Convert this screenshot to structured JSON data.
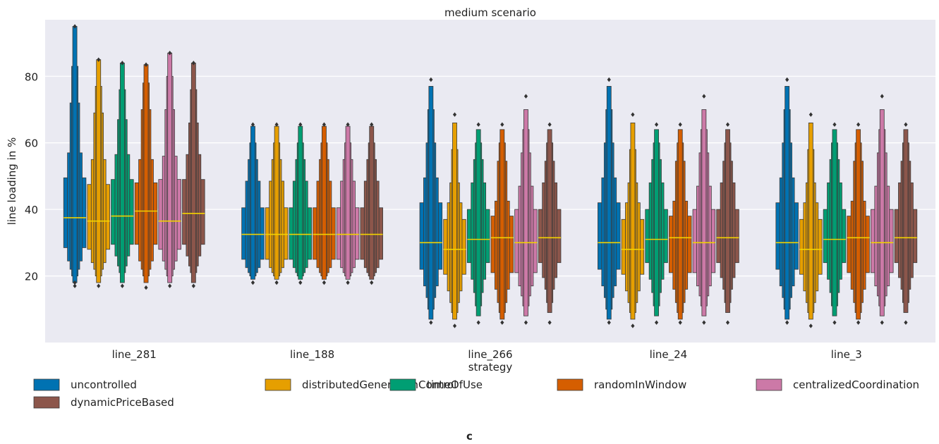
{
  "chart_data": {
    "type": "boxen",
    "title": "medium scenario",
    "xlabel": "strategy",
    "ylabel": "line loading in %",
    "ylim": [
      0,
      97
    ],
    "yticks": [
      20,
      40,
      60,
      80
    ],
    "grid": true,
    "legend_position": "bottom",
    "categories": [
      "line_281",
      "line_188",
      "line_266",
      "line_24",
      "line_3"
    ],
    "series": [
      {
        "name": "uncontrolled",
        "color": "#0072b2"
      },
      {
        "name": "distributedGenerationControl",
        "color": "#e69f00"
      },
      {
        "name": "timeOfUse",
        "color": "#009e73"
      },
      {
        "name": "randomInWindow",
        "color": "#d55e00"
      },
      {
        "name": "centralizedCoordination",
        "color": "#cc79a7"
      },
      {
        "name": "dynamicPriceBased",
        "color": "#8c564b"
      }
    ],
    "boxes": [
      [
        {
          "median": 37.5,
          "boxes": [
            [
              28.5,
              49.5
            ],
            [
              24.5,
              57
            ],
            [
              22,
              72
            ],
            [
              20,
              83
            ],
            [
              18,
              95
            ]
          ],
          "outliers": [
            17,
            18,
            95
          ]
        },
        {
          "median": 36.5,
          "boxes": [
            [
              28,
              47.5
            ],
            [
              24,
              55
            ],
            [
              22,
              69
            ],
            [
              20,
              77
            ],
            [
              18,
              85
            ]
          ],
          "outliers": [
            17,
            85
          ]
        },
        {
          "median": 38,
          "boxes": [
            [
              29.5,
              49
            ],
            [
              26,
              56.5
            ],
            [
              23,
              67
            ],
            [
              21,
              76
            ],
            [
              18,
              84
            ]
          ],
          "outliers": [
            17,
            84
          ]
        },
        {
          "median": 39.5,
          "boxes": [
            [
              29.5,
              48
            ],
            [
              24.5,
              55
            ],
            [
              22,
              70
            ],
            [
              20,
              78
            ],
            [
              18,
              83.5
            ]
          ],
          "outliers": [
            16.5,
            83.5
          ]
        },
        {
          "median": 36.5,
          "boxes": [
            [
              28,
              49
            ],
            [
              24.5,
              56
            ],
            [
              22,
              70
            ],
            [
              20,
              80
            ],
            [
              18,
              87
            ]
          ],
          "outliers": [
            17,
            87
          ]
        },
        {
          "median": 38.8,
          "boxes": [
            [
              29.5,
              49
            ],
            [
              26,
              56.5
            ],
            [
              23,
              66
            ],
            [
              21,
              76
            ],
            [
              18,
              84
            ]
          ],
          "outliers": [
            17,
            84
          ]
        }
      ],
      [
        {
          "median": 32.5,
          "boxes": [
            [
              25,
              40.5
            ],
            [
              22.5,
              48.5
            ],
            [
              21,
              55
            ],
            [
              20,
              60
            ],
            [
              19,
              65
            ]
          ],
          "outliers": [
            18,
            65.5
          ]
        },
        {
          "median": 32.5,
          "boxes": [
            [
              25,
              40.5
            ],
            [
              22.5,
              48.5
            ],
            [
              21,
              55
            ],
            [
              20,
              60
            ],
            [
              19,
              65
            ]
          ],
          "outliers": [
            18,
            65.5
          ]
        },
        {
          "median": 32.5,
          "boxes": [
            [
              25,
              40.5
            ],
            [
              22.5,
              48.5
            ],
            [
              21,
              55
            ],
            [
              20,
              60
            ],
            [
              19,
              65
            ]
          ],
          "outliers": [
            18,
            65.5
          ]
        },
        {
          "median": 32.5,
          "boxes": [
            [
              25,
              40.5
            ],
            [
              22.5,
              48.5
            ],
            [
              21,
              55
            ],
            [
              20,
              60
            ],
            [
              19,
              65
            ]
          ],
          "outliers": [
            18,
            65.5
          ]
        },
        {
          "median": 32.5,
          "boxes": [
            [
              25,
              40.5
            ],
            [
              22.5,
              48.5
            ],
            [
              21,
              55
            ],
            [
              20,
              60
            ],
            [
              19,
              65
            ]
          ],
          "outliers": [
            18,
            65.5
          ]
        },
        {
          "median": 32.5,
          "boxes": [
            [
              25,
              40.5
            ],
            [
              22.5,
              48.5
            ],
            [
              21,
              55
            ],
            [
              20,
              60
            ],
            [
              19,
              65
            ]
          ],
          "outliers": [
            18,
            65.5
          ]
        }
      ],
      [
        {
          "median": 30,
          "boxes": [
            [
              22,
              42
            ],
            [
              17,
              49.5
            ],
            [
              13.5,
              60
            ],
            [
              10,
              70
            ],
            [
              7,
              77
            ]
          ],
          "outliers": [
            6,
            79
          ]
        },
        {
          "median": 28,
          "boxes": [
            [
              20.5,
              37
            ],
            [
              15.5,
              42
            ],
            [
              12,
              48
            ],
            [
              9,
              58
            ],
            [
              7,
              66
            ]
          ],
          "outliers": [
            5,
            68.5
          ]
        },
        {
          "median": 31,
          "boxes": [
            [
              24,
              40
            ],
            [
              19,
              48
            ],
            [
              15,
              55
            ],
            [
              11,
              60
            ],
            [
              8,
              64
            ]
          ],
          "outliers": [
            6,
            65.5
          ]
        },
        {
          "median": 31.5,
          "boxes": [
            [
              21,
              38
            ],
            [
              16,
              42.5
            ],
            [
              12,
              54.5
            ],
            [
              9,
              60
            ],
            [
              7,
              64
            ]
          ],
          "outliers": [
            6,
            65.5
          ]
        },
        {
          "median": 30,
          "boxes": [
            [
              21,
              40
            ],
            [
              17,
              47
            ],
            [
              14,
              57
            ],
            [
              11,
              64
            ],
            [
              8,
              70
            ]
          ],
          "outliers": [
            6,
            74
          ]
        },
        {
          "median": 31.5,
          "boxes": [
            [
              24,
              40
            ],
            [
              19.5,
              48
            ],
            [
              16,
              54.5
            ],
            [
              12,
              60
            ],
            [
              9,
              64
            ]
          ],
          "outliers": [
            6,
            65.5
          ]
        }
      ],
      [
        {
          "median": 30,
          "boxes": [
            [
              22,
              42
            ],
            [
              17,
              49.5
            ],
            [
              13.5,
              60
            ],
            [
              10,
              70
            ],
            [
              7,
              77
            ]
          ],
          "outliers": [
            6,
            79
          ]
        },
        {
          "median": 28,
          "boxes": [
            [
              20.5,
              37
            ],
            [
              15.5,
              42
            ],
            [
              12,
              48
            ],
            [
              9,
              58
            ],
            [
              7,
              66
            ]
          ],
          "outliers": [
            5,
            68.5
          ]
        },
        {
          "median": 31,
          "boxes": [
            [
              24,
              40
            ],
            [
              19,
              48
            ],
            [
              15,
              55
            ],
            [
              11,
              60
            ],
            [
              8,
              64
            ]
          ],
          "outliers": [
            6,
            65.5
          ]
        },
        {
          "median": 31.5,
          "boxes": [
            [
              21,
              38
            ],
            [
              16,
              42.5
            ],
            [
              12,
              54.5
            ],
            [
              9,
              60
            ],
            [
              7,
              64
            ]
          ],
          "outliers": [
            6,
            65.5
          ]
        },
        {
          "median": 30,
          "boxes": [
            [
              21,
              40
            ],
            [
              17,
              47
            ],
            [
              14,
              57
            ],
            [
              11,
              64
            ],
            [
              8,
              70
            ]
          ],
          "outliers": [
            6,
            74
          ]
        },
        {
          "median": 31.5,
          "boxes": [
            [
              24,
              40
            ],
            [
              19.5,
              48
            ],
            [
              16,
              54.5
            ],
            [
              12,
              60
            ],
            [
              9,
              64
            ]
          ],
          "outliers": [
            6,
            65.5
          ]
        }
      ],
      [
        {
          "median": 30,
          "boxes": [
            [
              22,
              42
            ],
            [
              17,
              49.5
            ],
            [
              13.5,
              60
            ],
            [
              10,
              70
            ],
            [
              7,
              77
            ]
          ],
          "outliers": [
            6,
            79
          ]
        },
        {
          "median": 28,
          "boxes": [
            [
              20.5,
              37
            ],
            [
              15.5,
              42
            ],
            [
              12,
              48
            ],
            [
              9,
              58
            ],
            [
              7,
              66
            ]
          ],
          "outliers": [
            5,
            68.5
          ]
        },
        {
          "median": 31,
          "boxes": [
            [
              24,
              40
            ],
            [
              19,
              48
            ],
            [
              15,
              55
            ],
            [
              11,
              60
            ],
            [
              8,
              64
            ]
          ],
          "outliers": [
            6,
            65.5
          ]
        },
        {
          "median": 31.5,
          "boxes": [
            [
              21,
              38
            ],
            [
              16,
              42.5
            ],
            [
              12,
              54.5
            ],
            [
              9,
              60
            ],
            [
              7,
              64
            ]
          ],
          "outliers": [
            6,
            65.5
          ]
        },
        {
          "median": 30,
          "boxes": [
            [
              21,
              40
            ],
            [
              17,
              47
            ],
            [
              14,
              57
            ],
            [
              11,
              64
            ],
            [
              8,
              70
            ]
          ],
          "outliers": [
            6,
            74
          ]
        },
        {
          "median": 31.5,
          "boxes": [
            [
              24,
              40
            ],
            [
              19.5,
              48
            ],
            [
              16,
              54.5
            ],
            [
              12,
              60
            ],
            [
              9,
              64
            ]
          ],
          "outliers": [
            6,
            65.5
          ]
        }
      ]
    ]
  },
  "panel_letter": "c"
}
